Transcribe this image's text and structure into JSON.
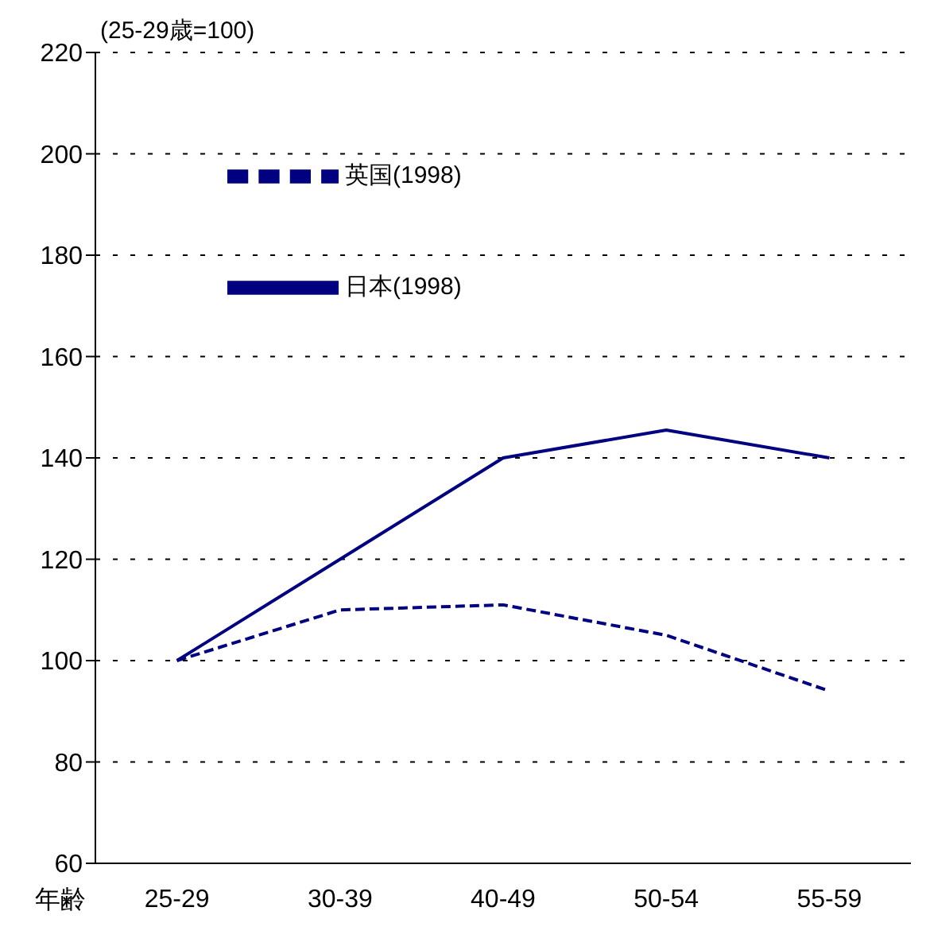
{
  "chart_data": {
    "type": "line",
    "ylabel": "(25-29歳=100)",
    "xlabel": "年齢",
    "categories": [
      "25-29",
      "30-39",
      "40-49",
      "50-54",
      "55-59"
    ],
    "series": [
      {
        "name": "英国(1998)",
        "color": "#000080",
        "line_style": "dashed",
        "values": [
          100,
          110,
          111,
          105,
          94
        ]
      },
      {
        "name": "日本(1998)",
        "color": "#000080",
        "line_style": "solid",
        "values": [
          100,
          120,
          140,
          145.5,
          140
        ]
      }
    ],
    "ylim": [
      60,
      220
    ],
    "yticks": [
      60,
      80,
      100,
      120,
      140,
      160,
      180,
      200,
      220
    ],
    "grid": "y",
    "legend": "top left",
    "marker": "none"
  }
}
